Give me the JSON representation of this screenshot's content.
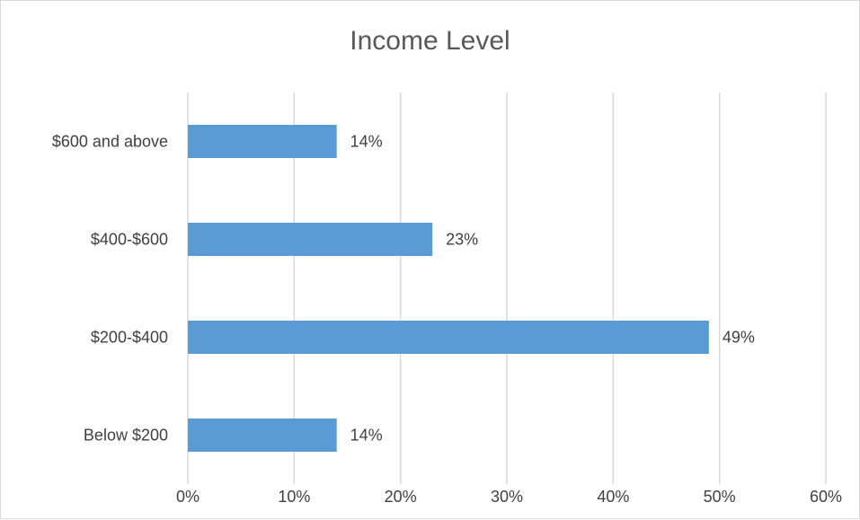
{
  "chart_data": {
    "type": "bar",
    "orientation": "horizontal",
    "title": "Income Level",
    "xlabel": "",
    "ylabel": "",
    "categories": [
      "$600 and above",
      "$400-$600",
      "$200-$400",
      "Below $200"
    ],
    "values": [
      14,
      23,
      49,
      14
    ],
    "value_labels": [
      "14%",
      "23%",
      "49%",
      "14%"
    ],
    "xlim": [
      0,
      60
    ],
    "ticks": [
      0,
      10,
      20,
      30,
      40,
      50,
      60
    ],
    "tick_labels": [
      "0%",
      "10%",
      "20%",
      "30%",
      "40%",
      "50%",
      "60%"
    ],
    "grid": "vertical",
    "legend": "none",
    "bar_color": "#5b9bd5",
    "grid_color": "#d9d9d9"
  }
}
